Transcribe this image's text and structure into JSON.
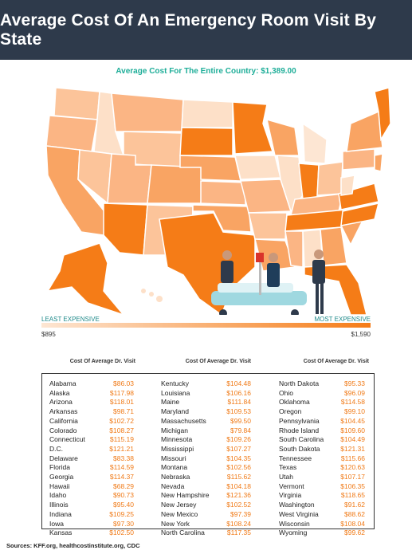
{
  "header": {
    "title": "Average Cost Of An Emergency Room Visit By State"
  },
  "subtitle": "Average Cost For The Entire Country: $1,389.00",
  "legend": {
    "least_label": "LEAST EXPENSIVE",
    "most_label": "MOST EXPENSIVE",
    "min_value": "$895",
    "max_value": "$1,590",
    "color_low": "#fde6d3",
    "color_high": "#f57c17"
  },
  "table": {
    "column_header": "Cost Of Average Dr. Visit",
    "columns": [
      [
        {
          "state": "Alabama",
          "cost": "$86.03"
        },
        {
          "state": "Alaska",
          "cost": "$117.98"
        },
        {
          "state": "Arizona",
          "cost": "$118.01"
        },
        {
          "state": "Arkansas",
          "cost": "$98.71"
        },
        {
          "state": "California",
          "cost": "$102.72"
        },
        {
          "state": "Colorado",
          "cost": "$108.27"
        },
        {
          "state": "Connecticut",
          "cost": "$115.19"
        },
        {
          "state": "D.C.",
          "cost": "$121.21"
        },
        {
          "state": "Delaware",
          "cost": "$83.38"
        },
        {
          "state": "Florida",
          "cost": "$114.59"
        },
        {
          "state": "Georgia",
          "cost": "$114.37"
        },
        {
          "state": "Hawaii",
          "cost": "$68.29"
        },
        {
          "state": "Idaho",
          "cost": "$90.73"
        },
        {
          "state": "Illinois",
          "cost": "$95.40"
        },
        {
          "state": "Indiana",
          "cost": "$109.25"
        },
        {
          "state": "Iowa",
          "cost": "$97.30"
        },
        {
          "state": "Kansas",
          "cost": "$102.50"
        }
      ],
      [
        {
          "state": "Kentucky",
          "cost": "$104.48"
        },
        {
          "state": "Louisiana",
          "cost": "$106.16"
        },
        {
          "state": "Maine",
          "cost": "$111.84"
        },
        {
          "state": "Maryland",
          "cost": "$109.53"
        },
        {
          "state": "Massachusetts",
          "cost": "$99.50"
        },
        {
          "state": "Michigan",
          "cost": "$79.84"
        },
        {
          "state": "Minnesota",
          "cost": "$109.26"
        },
        {
          "state": "Mississippi",
          "cost": "$107.27"
        },
        {
          "state": "Missouri",
          "cost": "$104.35"
        },
        {
          "state": "Montana",
          "cost": "$102.56"
        },
        {
          "state": "Nebraska",
          "cost": "$115.62"
        },
        {
          "state": "Nevada",
          "cost": "$104.18"
        },
        {
          "state": "New Hampshire",
          "cost": "$121.36"
        },
        {
          "state": "New Jersey",
          "cost": "$102.52"
        },
        {
          "state": "New Mexico",
          "cost": "$97.39"
        },
        {
          "state": "New York",
          "cost": "$108.24"
        },
        {
          "state": "North Carolina",
          "cost": "$117.35"
        }
      ],
      [
        {
          "state": "North Dakota",
          "cost": "$95.33"
        },
        {
          "state": "Ohio",
          "cost": "$96.09"
        },
        {
          "state": "Oklahoma",
          "cost": "$114.58"
        },
        {
          "state": "Oregon",
          "cost": "$99.10"
        },
        {
          "state": "Pennsylvania",
          "cost": "$104.45"
        },
        {
          "state": "Rhode Island",
          "cost": "$109.60"
        },
        {
          "state": "South Carolina",
          "cost": "$104.49"
        },
        {
          "state": "South Dakota",
          "cost": "$121.31"
        },
        {
          "state": "Tennessee",
          "cost": "$115.66"
        },
        {
          "state": "Texas",
          "cost": "$120.63"
        },
        {
          "state": "Utah",
          "cost": "$107.17"
        },
        {
          "state": "Vermont",
          "cost": "$106.35"
        },
        {
          "state": "Virginia",
          "cost": "$118.65"
        },
        {
          "state": "Washington",
          "cost": "$91.62"
        },
        {
          "state": "West Virginia",
          "cost": "$88.62"
        },
        {
          "state": "Wisconsin",
          "cost": "$108.04"
        },
        {
          "state": "Wyoming",
          "cost": "$99.62"
        }
      ]
    ]
  },
  "sources": "Sources: KFF.org, healthcostinstitute.org, CDC",
  "colors": {
    "header_bg": "#2e3a4b",
    "accent_teal": "#1fae99",
    "accent_orange": "#f07a17"
  }
}
